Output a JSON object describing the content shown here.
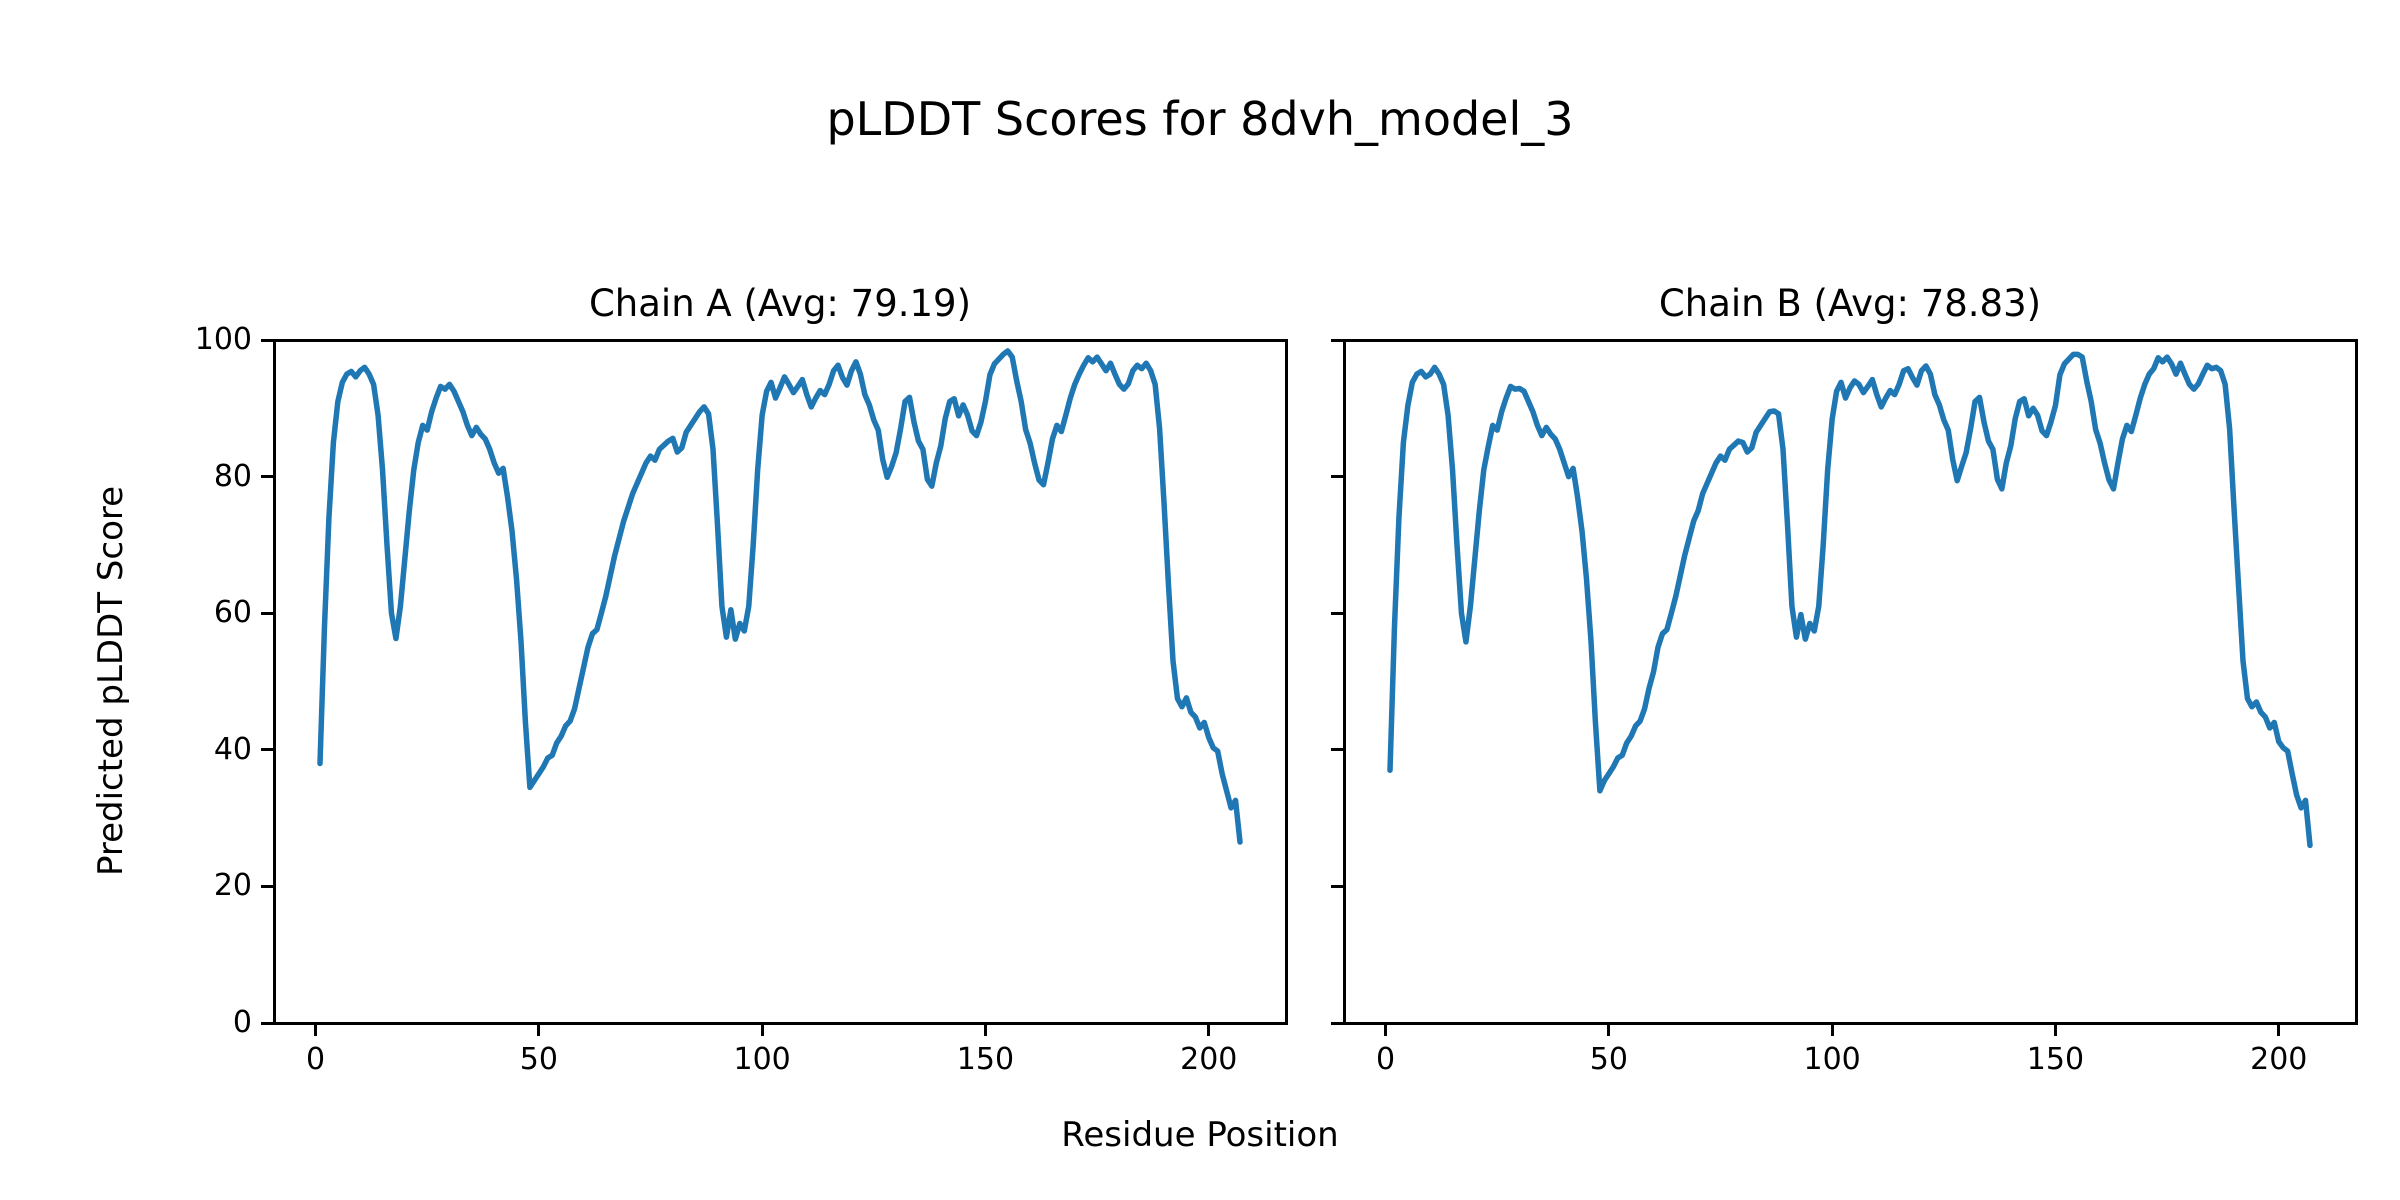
{
  "figure": {
    "suptitle": "pLDDT Scores for 8dvh_model_3",
    "xlabel": "Residue Position",
    "ylabel": "Predicted pLDDT Score",
    "background_color": "#ffffff",
    "text_color": "#000000",
    "line_color": "#1f77b4"
  },
  "chart_data": [
    {
      "type": "line",
      "title": "Chain A (Avg: 79.19)",
      "average": 79.19,
      "legend": null,
      "grid": false,
      "line_color": "#1f77b4",
      "x_start": 1,
      "xlim": [
        -9.3,
        217.3
      ],
      "ylim": [
        0,
        100
      ],
      "xticks": [
        0,
        50,
        100,
        150,
        200
      ],
      "yticks": [
        0,
        20,
        40,
        60,
        80,
        100
      ],
      "show_ytick_labels": true,
      "values": [
        38.0,
        58.0,
        74.0,
        85.0,
        91.0,
        93.8,
        95.0,
        95.4,
        94.6,
        95.5,
        96.0,
        95.0,
        93.5,
        89.0,
        81.0,
        70.0,
        60.0,
        56.3,
        61.0,
        68.0,
        75.0,
        81.0,
        85.0,
        87.5,
        86.8,
        89.5,
        91.5,
        93.2,
        92.8,
        93.5,
        92.5,
        91.0,
        89.5,
        87.5,
        86.0,
        87.2,
        86.2,
        85.5,
        84.0,
        82.0,
        80.5,
        81.2,
        77.0,
        72.0,
        65.0,
        56.0,
        44.0,
        34.5,
        35.5,
        36.5,
        37.5,
        38.8,
        39.2,
        41.0,
        42.0,
        43.5,
        44.2,
        46.0,
        49.0,
        52.0,
        55.0,
        57.0,
        57.6,
        60.0,
        62.5,
        65.5,
        68.5,
        71.0,
        73.5,
        75.5,
        77.5,
        79.0,
        80.5,
        82.0,
        83.0,
        82.4,
        84.0,
        84.6,
        85.2,
        85.6,
        83.6,
        84.2,
        86.5,
        87.5,
        88.5,
        89.5,
        90.2,
        89.2,
        84.0,
        73.0,
        61.0,
        56.5,
        60.5,
        56.2,
        58.5,
        57.4,
        61.0,
        70.0,
        81.0,
        89.0,
        92.5,
        93.8,
        91.5,
        93.0,
        94.6,
        93.5,
        92.3,
        93.2,
        94.2,
        92.0,
        90.2,
        91.5,
        92.6,
        92.0,
        93.5,
        95.5,
        96.3,
        94.5,
        93.4,
        95.5,
        96.8,
        95.0,
        92.0,
        90.5,
        88.3,
        86.8,
        82.5,
        79.9,
        81.5,
        83.5,
        87.0,
        91.0,
        91.6,
        88.0,
        85.2,
        84.0,
        79.6,
        78.6,
        82.0,
        84.5,
        88.5,
        91.0,
        91.4,
        88.9,
        90.5,
        89.0,
        86.7,
        86.0,
        88.0,
        91.0,
        94.9,
        96.5,
        97.2,
        97.9,
        98.4,
        97.5,
        94.0,
        91.0,
        86.9,
        84.9,
        82.0,
        79.5,
        78.8,
        82.0,
        85.5,
        87.5,
        86.6,
        89.0,
        91.5,
        93.5,
        95.0,
        96.3,
        97.4,
        96.8,
        97.5,
        96.5,
        95.5,
        96.6,
        95.0,
        93.5,
        92.8,
        93.6,
        95.5,
        96.3,
        95.8,
        96.6,
        95.5,
        93.5,
        87.0,
        76.0,
        64.0,
        53.0,
        47.5,
        46.3,
        47.6,
        45.5,
        44.8,
        43.2,
        44.0,
        41.8,
        40.3,
        39.8,
        36.5,
        34.0,
        31.5,
        32.6,
        26.5
      ]
    },
    {
      "type": "line",
      "title": "Chain B (Avg: 78.83)",
      "average": 78.83,
      "legend": null,
      "grid": false,
      "line_color": "#1f77b4",
      "x_start": 1,
      "xlim": [
        -9.3,
        217.3
      ],
      "ylim": [
        0,
        100
      ],
      "xticks": [
        0,
        50,
        100,
        150,
        200
      ],
      "yticks": [
        0,
        20,
        40,
        60,
        80,
        100
      ],
      "show_ytick_labels": false,
      "values": [
        37.0,
        58.0,
        74.0,
        85.0,
        90.4,
        93.8,
        95.0,
        95.4,
        94.6,
        95.0,
        96.0,
        95.0,
        93.5,
        89.0,
        81.0,
        70.0,
        60.0,
        55.8,
        61.0,
        68.0,
        75.0,
        81.0,
        84.4,
        87.5,
        86.8,
        89.5,
        91.5,
        93.2,
        92.8,
        92.9,
        92.5,
        91.0,
        89.5,
        87.5,
        86.0,
        87.2,
        86.2,
        85.5,
        84.0,
        82.0,
        80.0,
        81.2,
        77.0,
        72.0,
        65.0,
        56.0,
        44.0,
        34.0,
        35.5,
        36.5,
        37.5,
        38.8,
        39.2,
        41.0,
        42.0,
        43.5,
        44.2,
        46.0,
        49.0,
        51.4,
        55.0,
        57.0,
        57.6,
        60.0,
        62.5,
        65.5,
        68.5,
        71.0,
        73.5,
        75.0,
        77.5,
        79.0,
        80.5,
        82.0,
        83.0,
        82.4,
        84.0,
        84.6,
        85.2,
        85.0,
        83.6,
        84.2,
        86.5,
        87.5,
        88.5,
        89.5,
        89.6,
        89.2,
        84.0,
        73.0,
        61.0,
        56.5,
        59.8,
        56.2,
        58.5,
        57.4,
        61.0,
        70.0,
        81.0,
        88.4,
        92.5,
        93.8,
        91.5,
        93.0,
        94.0,
        93.5,
        92.3,
        93.2,
        94.2,
        92.0,
        90.2,
        91.5,
        92.6,
        92.0,
        93.5,
        95.5,
        95.8,
        94.5,
        93.4,
        95.5,
        96.2,
        95.0,
        92.0,
        90.5,
        88.3,
        86.8,
        82.5,
        79.4,
        81.5,
        83.5,
        87.0,
        91.0,
        91.6,
        88.0,
        85.2,
        84.0,
        79.6,
        78.2,
        82.0,
        84.5,
        88.5,
        91.0,
        91.4,
        88.9,
        90.0,
        89.0,
        86.7,
        86.0,
        88.0,
        90.4,
        94.9,
        96.5,
        97.2,
        97.9,
        97.9,
        97.5,
        94.0,
        91.0,
        86.9,
        84.9,
        82.0,
        79.5,
        78.2,
        82.0,
        85.5,
        87.5,
        86.6,
        89.0,
        91.5,
        93.5,
        95.0,
        95.8,
        97.4,
        96.8,
        97.5,
        96.5,
        95.0,
        96.6,
        95.0,
        93.5,
        92.8,
        93.6,
        95.0,
        96.3,
        95.8,
        96.0,
        95.5,
        93.5,
        87.0,
        75.2,
        64.0,
        53.0,
        47.5,
        46.3,
        47.0,
        45.5,
        44.8,
        43.2,
        44.0,
        41.2,
        40.3,
        39.8,
        36.5,
        33.4,
        31.5,
        32.6,
        26.0
      ]
    }
  ]
}
